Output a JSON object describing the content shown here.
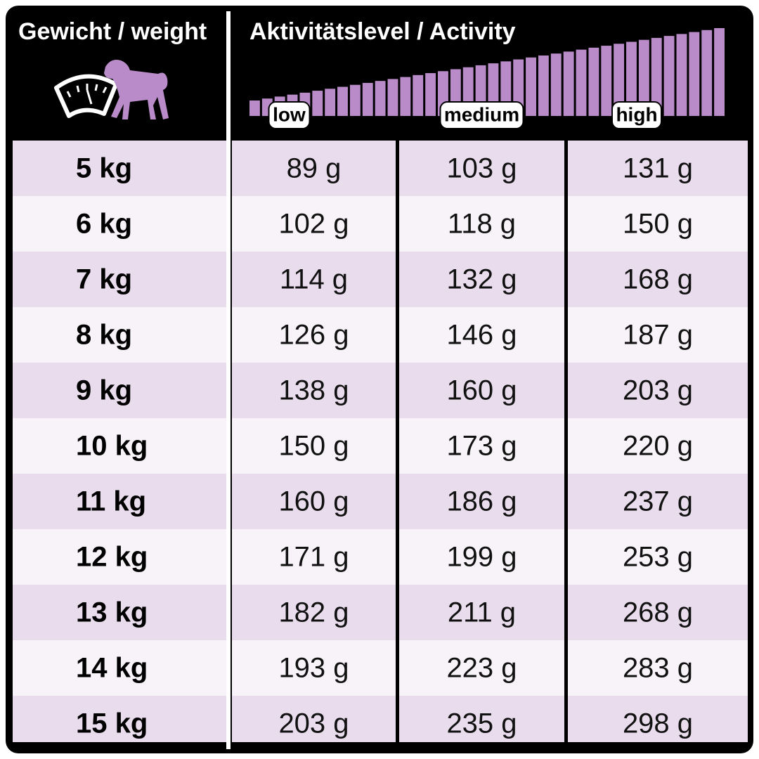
{
  "header": {
    "weight_title": "Gewicht / weight",
    "activity_title": "Aktivitätslevel / Activity",
    "activity_levels": [
      "low",
      "medium",
      "high"
    ]
  },
  "table": {
    "rows": [
      [
        "5 kg",
        "89 g",
        "103 g",
        "131 g"
      ],
      [
        "6 kg",
        "102 g",
        "118 g",
        "150 g"
      ],
      [
        "7 kg",
        "114 g",
        "132 g",
        "168 g"
      ],
      [
        "8 kg",
        "126 g",
        "146 g",
        "187 g"
      ],
      [
        "9 kg",
        "138 g",
        "160 g",
        "203 g"
      ],
      [
        "10 kg",
        "150 g",
        "173 g",
        "220 g"
      ],
      [
        "11 kg",
        "160 g",
        "186 g",
        "237 g"
      ],
      [
        "12 kg",
        "171 g",
        "199 g",
        "253 g"
      ],
      [
        "13 kg",
        "182 g",
        "211 g",
        "268 g"
      ],
      [
        "14 kg",
        "193 g",
        "223 g",
        "283 g"
      ],
      [
        "15 kg",
        "203 g",
        "235 g",
        "298 g"
      ]
    ]
  }
}
